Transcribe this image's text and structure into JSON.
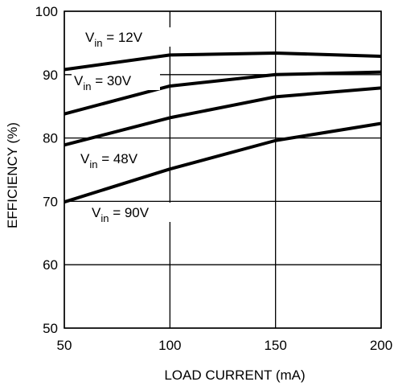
{
  "chart_data": {
    "type": "line",
    "xlabel": "LOAD CURRENT (mA)",
    "ylabel": "EFFICIENCY (%)",
    "xlim": [
      50,
      200
    ],
    "ylim": [
      50,
      100
    ],
    "x_ticks": [
      "50",
      "100",
      "150",
      "200"
    ],
    "y_ticks": [
      "50",
      "60",
      "70",
      "80",
      "90",
      "100"
    ],
    "grid": true,
    "x": [
      50,
      100,
      150,
      200
    ],
    "series": [
      {
        "name": "12V",
        "values": [
          90.8,
          93.1,
          93.4,
          92.9
        ]
      },
      {
        "name": "30V",
        "values": [
          83.8,
          88.2,
          90.0,
          90.4
        ]
      },
      {
        "name": "48V",
        "values": [
          78.9,
          83.2,
          86.5,
          87.9
        ]
      },
      {
        "name": "90V",
        "values": [
          69.9,
          75.1,
          79.6,
          82.3
        ]
      }
    ],
    "annotations": [
      {
        "prefix": "V",
        "sub": "in",
        "suffix": " = 12V"
      },
      {
        "prefix": "V",
        "sub": "in",
        "suffix": " = 30V"
      },
      {
        "prefix": "V",
        "sub": "in",
        "suffix": " = 48V"
      },
      {
        "prefix": "V",
        "sub": "in",
        "suffix": " = 90V"
      }
    ]
  }
}
